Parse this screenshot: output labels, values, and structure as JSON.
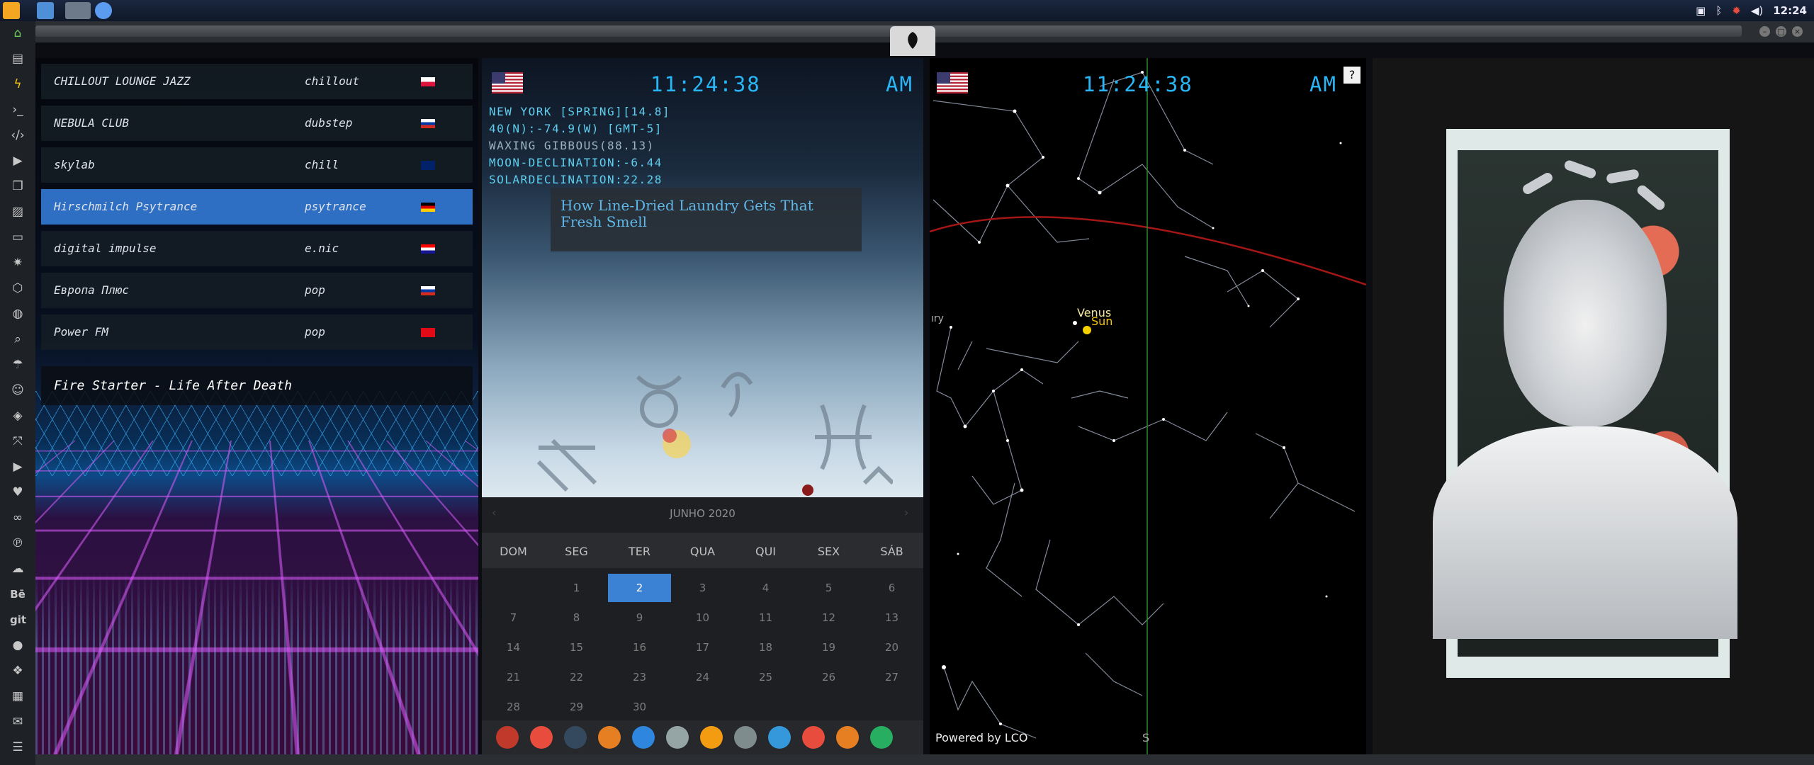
{
  "taskbar": {
    "apps": [
      {
        "name": "sublime-text-icon",
        "color": "#f4a623"
      },
      {
        "name": "file-manager-icon",
        "color": "#4e8fd6"
      },
      {
        "name": "window-thumbnail-icon",
        "color": "#6c7a8a"
      },
      {
        "name": "chrome-icon",
        "color": "#5c9cf0"
      }
    ],
    "clock": "12:24"
  },
  "radio": {
    "stations": [
      {
        "name": "CHILLOUT LOUNGE JAZZ",
        "genre": "chillout",
        "flag": "pl"
      },
      {
        "name": "NEBULA CLUB",
        "genre": "dubstep",
        "flag": "ru"
      },
      {
        "name": "skylab",
        "genre": "chill",
        "flag": "gb"
      },
      {
        "name": "Hirschmilch Psytrance",
        "genre": "psytrance",
        "flag": "de"
      },
      {
        "name": "digital impulse",
        "genre": "e.nic",
        "flag": "hr"
      },
      {
        "name": "Европа Плюс",
        "genre": "pop",
        "flag": "ru"
      },
      {
        "name": "Power FM",
        "genre": "pop",
        "flag": "tr"
      }
    ],
    "selected_index": 3,
    "now_playing": "Fire Starter - Life After Death",
    "accent": "#2e6fc4"
  },
  "clock_panel": {
    "time": "11:24:38",
    "ampm": "AM",
    "info": [
      "NEW YORK [SPRING][14.8]",
      "40(N):-74.9(W) [GMT-5]",
      "WAXING GIBBOUS(88.13)",
      "MOON-DECLINATION:-6.44",
      "SOLARDECLINATION:22.28"
    ],
    "news_headline": "How Line-Dried Laundry Gets That Fresh Smell"
  },
  "calendar": {
    "month_label": "JUNHO 2020",
    "weekdays": [
      "DOM",
      "SEG",
      "TER",
      "QUA",
      "QUI",
      "SEX",
      "SÁB"
    ],
    "weeks": [
      [
        "",
        "1",
        "2",
        "3",
        "4",
        "5",
        "6"
      ],
      [
        "7",
        "8",
        "9",
        "10",
        "11",
        "12",
        "13"
      ],
      [
        "14",
        "15",
        "16",
        "17",
        "18",
        "19",
        "20"
      ],
      [
        "21",
        "22",
        "23",
        "24",
        "25",
        "26",
        "27"
      ],
      [
        "28",
        "29",
        "30",
        "",
        "",
        "",
        ""
      ]
    ],
    "today": "2",
    "accent": "#3b82d4"
  },
  "launcher": {
    "icons": [
      {
        "name": "arch-icon",
        "color": "#c0392b"
      },
      {
        "name": "hourglass-icon",
        "color": "#e74c3c"
      },
      {
        "name": "globe-dark-icon",
        "color": "#34495e"
      },
      {
        "name": "image-viewer-icon",
        "color": "#e67e22"
      },
      {
        "name": "translate-icon",
        "color": "#2e86de"
      },
      {
        "name": "news-icon",
        "color": "#95a5a6"
      },
      {
        "name": "search-icon",
        "color": "#f39c12"
      },
      {
        "name": "clock-icon",
        "color": "#7f8c8d"
      },
      {
        "name": "web-browser-icon",
        "color": "#3498db"
      },
      {
        "name": "calendar-icon",
        "color": "#e74c3c"
      },
      {
        "name": "terminal-arrow-icon",
        "color": "#e67e22"
      },
      {
        "name": "yandex-icon",
        "color": "#27ae60"
      }
    ]
  },
  "sky": {
    "time": "11:24:38",
    "ampm": "AM",
    "help": "?",
    "labels": {
      "venus": "Venus",
      "sun": "Sun",
      "mercury_partial": "ıry",
      "south": "S"
    },
    "powered_by": "Powered by LCO"
  }
}
